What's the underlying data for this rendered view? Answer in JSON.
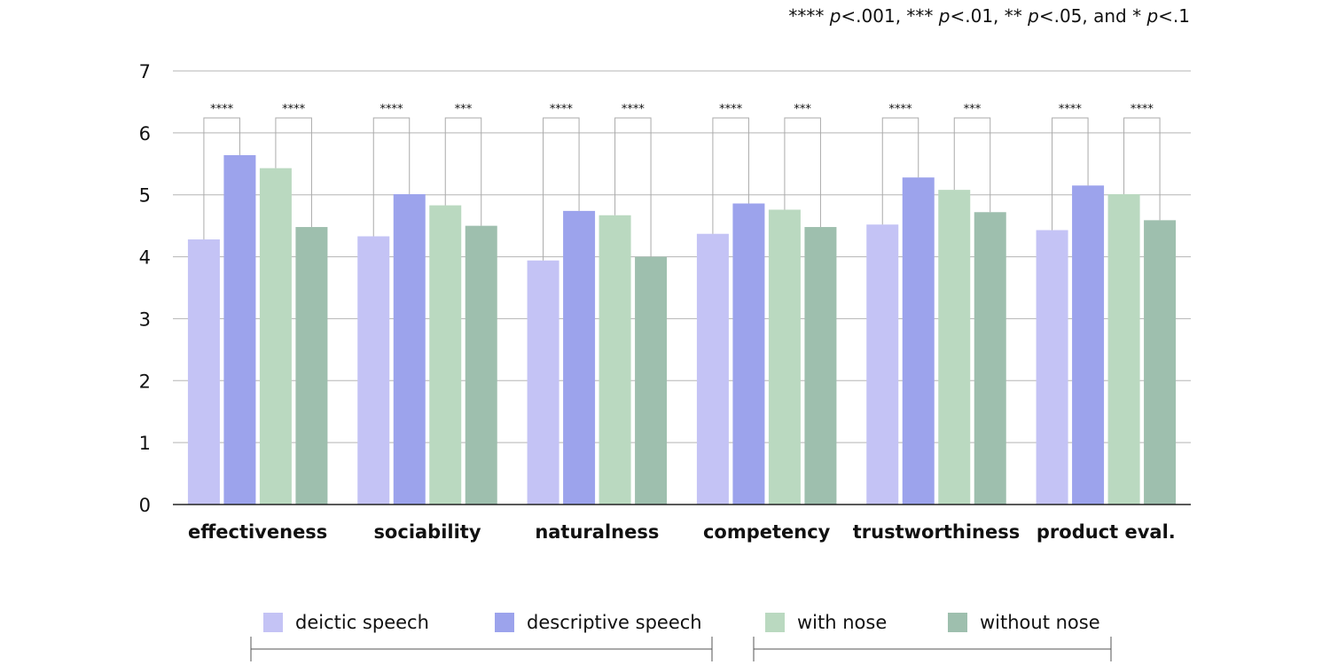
{
  "significance_note": {
    "prefix": "****",
    "p1": "p",
    "t1": "<.001, ***",
    "p2": "p",
    "t2": "<.01, **",
    "p3": "p",
    "t3": "<.05, and *",
    "p4": "p",
    "t4": "<.1"
  },
  "chart_data": {
    "type": "bar",
    "categories": [
      "effectiveness",
      "sociability",
      "naturalness",
      "competency",
      "trustworthiness",
      "product eval."
    ],
    "ylim": [
      0,
      7
    ],
    "yticks": [
      0,
      1,
      2,
      3,
      4,
      5,
      6,
      7
    ],
    "grid": true,
    "legend_position": "bottom",
    "series": [
      {
        "name": "deictic speech",
        "color": "#c4c3f5",
        "values": [
          4.28,
          4.33,
          3.94,
          4.37,
          4.52,
          4.43
        ]
      },
      {
        "name": "descriptive speech",
        "color": "#9ca3ec",
        "values": [
          5.64,
          5.01,
          4.74,
          4.86,
          5.28,
          5.15
        ]
      },
      {
        "name": "with nose",
        "color": "#bad9c0",
        "values": [
          5.43,
          4.83,
          4.67,
          4.76,
          5.08,
          5.01
        ]
      },
      {
        "name": "without nose",
        "color": "#9ebfae",
        "values": [
          4.48,
          4.5,
          4.0,
          4.48,
          4.72,
          4.59
        ]
      }
    ],
    "significance": [
      {
        "category": "effectiveness",
        "speech": "****",
        "nose": "****"
      },
      {
        "category": "sociability",
        "speech": "****",
        "nose": "***"
      },
      {
        "category": "naturalness",
        "speech": "****",
        "nose": "****"
      },
      {
        "category": "competency",
        "speech": "****",
        "nose": "***"
      },
      {
        "category": "trustworthiness",
        "speech": "****",
        "nose": "***"
      },
      {
        "category": "product eval.",
        "speech": "****",
        "nose": "****"
      }
    ]
  }
}
